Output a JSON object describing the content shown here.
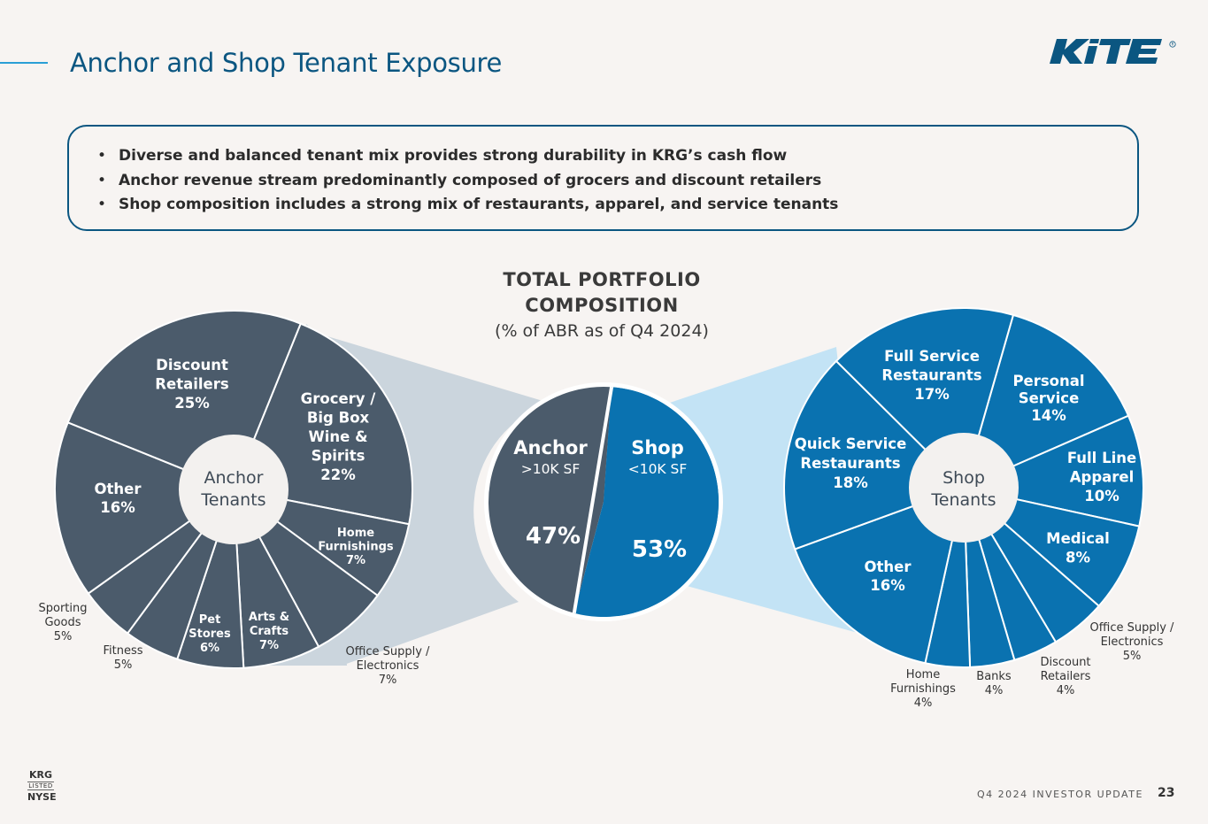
{
  "header": {
    "title": "Anchor and Shop Tenant Exposure",
    "logo_text": "KITE"
  },
  "bullets": [
    "Diverse and balanced tenant mix provides strong durability in KRG’s cash flow",
    "Anchor revenue stream predominantly composed of grocers and discount retailers",
    "Shop composition includes a strong mix of restaurants, apparel, and service tenants"
  ],
  "center": {
    "title_line1": "TOTAL PORTFOLIO",
    "title_line2": "COMPOSITION",
    "subtitle": "(% of ABR as of Q4 2024)"
  },
  "footer": {
    "label": "Q4 2024 INVESTOR UPDATE",
    "page": "23",
    "ticker": "KRG",
    "listed": "LISTED",
    "exchange": "NYSE"
  },
  "colors": {
    "anchor": "#4b5b6b",
    "shop": "#0a72b0",
    "anchor_fan": "#cbd5dd",
    "shop_fan": "#c3e3f5",
    "title": "#0b5681"
  },
  "chart_data": [
    {
      "type": "pie",
      "title": "Anchor Tenants",
      "slices": [
        {
          "label": "Grocery / Big Box Wine & Spirits",
          "value": 22,
          "text": "22%"
        },
        {
          "label": "Home Furnishings",
          "value": 7,
          "text": "7%"
        },
        {
          "label": "Office Supply / Electronics",
          "value": 7,
          "text": "7%"
        },
        {
          "label": "Arts & Crafts",
          "value": 7,
          "text": "7%"
        },
        {
          "label": "Pet Stores",
          "value": 6,
          "text": "6%"
        },
        {
          "label": "Fitness",
          "value": 5,
          "text": "5%"
        },
        {
          "label": "Sporting Goods",
          "value": 5,
          "text": "5%"
        },
        {
          "label": "Other",
          "value": 16,
          "text": "16%"
        },
        {
          "label": "Discount Retailers",
          "value": 25,
          "text": "25%"
        }
      ]
    },
    {
      "type": "pie",
      "title": "Total Portfolio",
      "slices": [
        {
          "label": "Anchor",
          "sublabel": ">10K SF",
          "value": 47,
          "text": "47%"
        },
        {
          "label": "Shop",
          "sublabel": "<10K SF",
          "value": 53,
          "text": "53%"
        }
      ]
    },
    {
      "type": "pie",
      "title": "Shop Tenants",
      "slices": [
        {
          "label": "Personal Service",
          "value": 14,
          "text": "14%"
        },
        {
          "label": "Full Line Apparel",
          "value": 10,
          "text": "10%"
        },
        {
          "label": "Medical",
          "value": 8,
          "text": "8%"
        },
        {
          "label": "Office Supply / Electronics",
          "value": 5,
          "text": "5%"
        },
        {
          "label": "Discount Retailers",
          "value": 4,
          "text": "4%"
        },
        {
          "label": "Banks",
          "value": 4,
          "text": "4%"
        },
        {
          "label": "Home Furnishings",
          "value": 4,
          "text": "4%"
        },
        {
          "label": "Other",
          "value": 16,
          "text": "16%"
        },
        {
          "label": "Quick Service Restaurants",
          "value": 18,
          "text": "18%"
        },
        {
          "label": "Full Service Restaurants",
          "value": 17,
          "text": "17%"
        }
      ]
    }
  ]
}
